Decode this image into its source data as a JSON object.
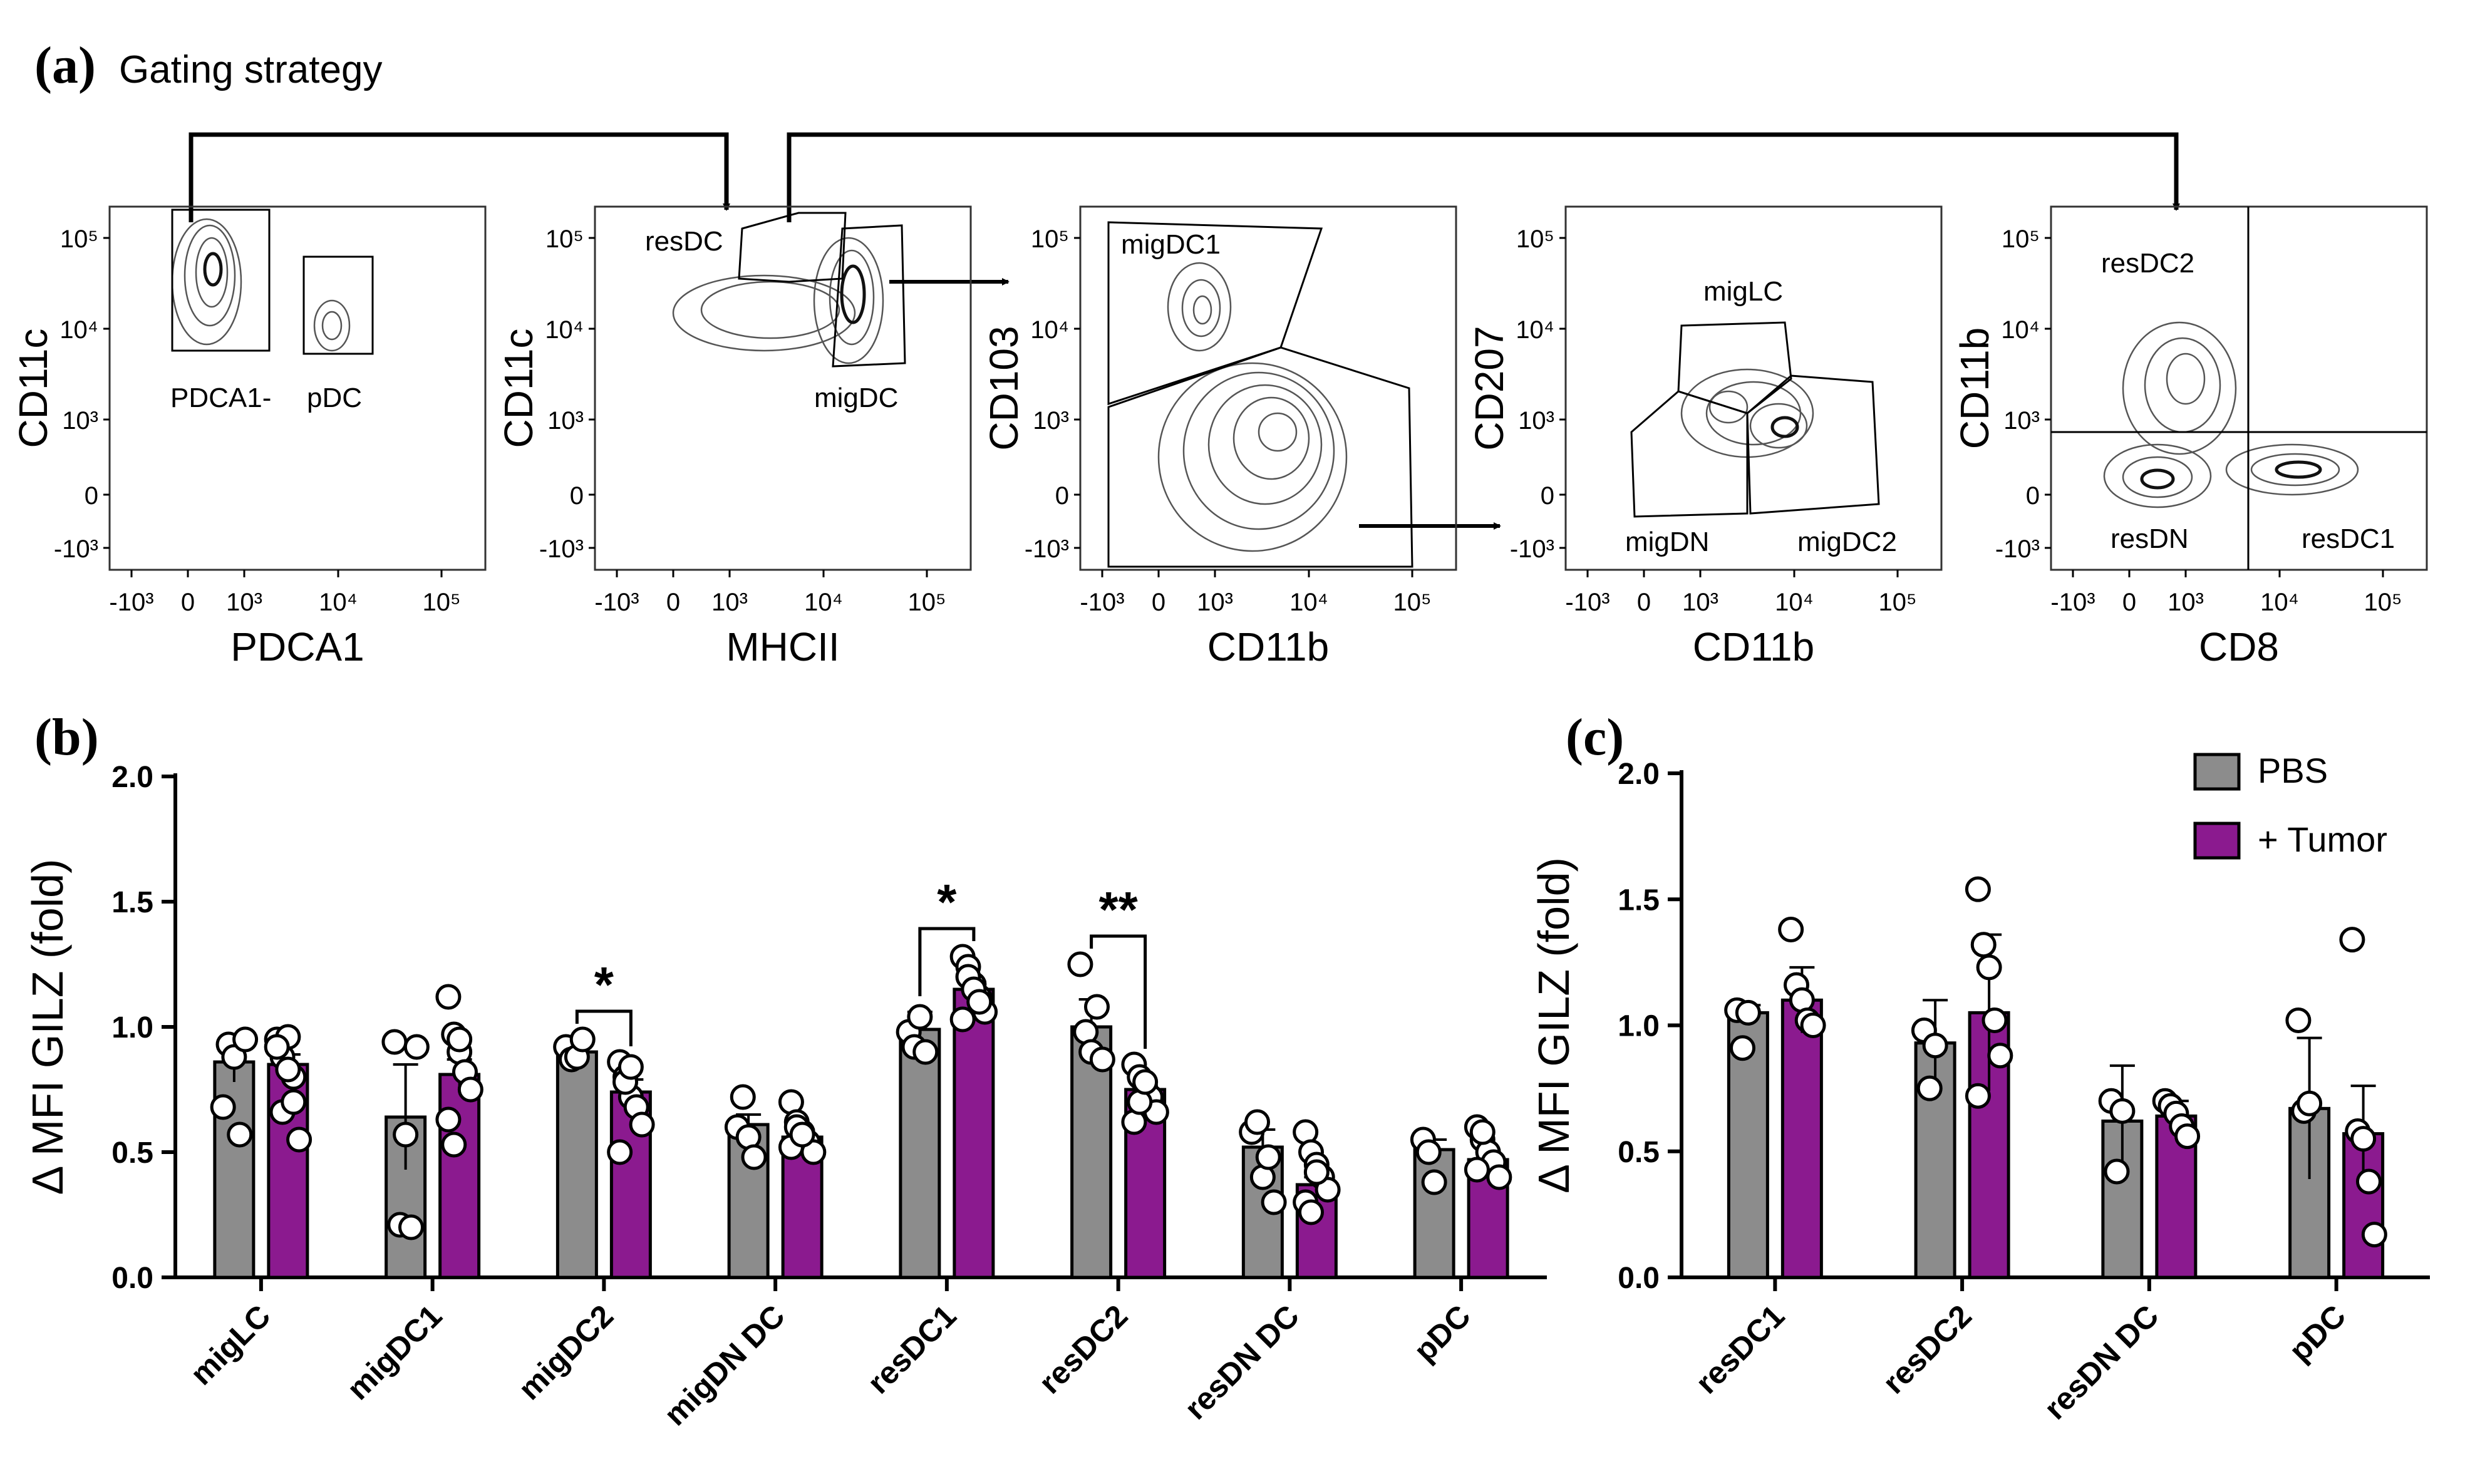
{
  "figure": {
    "panel_a": {
      "letter": "(a)",
      "title": "Gating strategy",
      "plots": [
        {
          "ylabel": "CD11c",
          "xlabel": "PDCA1",
          "gates": [
            "PDCA1-",
            "pDC"
          ]
        },
        {
          "ylabel": "CD11c",
          "xlabel": "MHCII",
          "gates": [
            "resDC",
            "migDC"
          ]
        },
        {
          "ylabel": "CD103",
          "xlabel": "CD11b",
          "gates": [
            "migDC1"
          ]
        },
        {
          "ylabel": "CD207",
          "xlabel": "CD11b",
          "gates": [
            "migLC",
            "migDN",
            "migDC2"
          ]
        },
        {
          "ylabel": "CD11b",
          "xlabel": "CD8",
          "gates": [
            "resDC2",
            "resDN",
            "resDC1"
          ]
        }
      ],
      "y_ticks": [
        "10⁵",
        "10⁴",
        "10³",
        "0",
        "-10³"
      ],
      "x_ticks": [
        "-10³",
        "0",
        "10³",
        "10⁴",
        "10⁵"
      ]
    },
    "panel_b": {
      "letter": "(b)"
    },
    "panel_c": {
      "letter": "(c)"
    }
  },
  "chart_data": [
    {
      "panel": "b",
      "type": "bar",
      "ylabel": "Δ MFI GILZ  (fold)",
      "xlabel": "",
      "ylim": [
        0,
        2.0
      ],
      "yticks": [
        "0.0",
        "0.5",
        "1.0",
        "1.5",
        "2.0"
      ],
      "categories": [
        "migLC",
        "migDC1",
        "migDC2",
        "migDN DC",
        "resDC1",
        "resDC2",
        "resDN DC",
        "pDC"
      ],
      "series": [
        {
          "name": "PBS",
          "color": "#8c8c8c",
          "values": [
            0.86,
            0.64,
            0.9,
            0.61,
            0.99,
            1.0,
            0.52,
            0.51
          ],
          "errors": [
            0.08,
            0.21,
            0.05,
            0.04,
            0.07,
            0.11,
            0.07,
            0.04
          ],
          "points": [
            [
              0.68,
              0.93,
              0.88,
              0.57,
              0.95
            ],
            [
              0.94,
              0.21,
              0.57,
              0.2,
              0.92
            ],
            [
              0.92,
              0.87,
              0.88,
              0.95
            ],
            [
              0.6,
              0.72,
              0.56,
              0.48
            ],
            [
              0.98,
              0.92,
              1.04,
              0.9
            ],
            [
              1.25,
              0.98,
              0.9,
              1.08,
              0.87
            ],
            [
              0.58,
              0.62,
              0.4,
              0.48,
              0.3
            ],
            [
              0.55,
              0.5,
              0.38
            ]
          ]
        },
        {
          "name": "+ Tumor",
          "color": "#8b1a8f",
          "values": [
            0.85,
            0.81,
            0.74,
            0.56,
            1.15,
            0.75,
            0.37,
            0.47
          ],
          "errors": [
            0.04,
            0.06,
            0.05,
            0.03,
            0.03,
            0.03,
            0.03,
            0.03
          ],
          "points": [
            [
              0.95,
              0.88,
              0.96,
              0.8,
              0.55,
              0.92,
              0.66,
              0.83,
              0.7
            ],
            [
              1.12,
              0.97,
              0.9,
              0.82,
              0.75,
              0.63,
              0.53,
              0.95
            ],
            [
              0.86,
              0.8,
              0.72,
              0.68,
              0.61,
              0.5,
              0.78,
              0.84
            ],
            [
              0.7,
              0.62,
              0.58,
              0.54,
              0.5,
              0.52,
              0.6,
              0.57
            ],
            [
              1.28,
              1.24,
              1.17,
              1.12,
              1.06,
              1.03,
              1.2,
              1.15,
              1.1
            ],
            [
              0.85,
              0.8,
              0.76,
              0.72,
              0.66,
              0.62,
              0.7,
              0.78
            ],
            [
              0.58,
              0.5,
              0.45,
              0.4,
              0.35,
              0.3,
              0.26,
              0.42
            ],
            [
              0.6,
              0.55,
              0.5,
              0.46,
              0.4,
              0.43,
              0.58
            ]
          ]
        }
      ],
      "significance": [
        {
          "category": "migDC2",
          "label": "*"
        },
        {
          "category": "resDC1",
          "label": "*"
        },
        {
          "category": "resDC2",
          "label": "**"
        }
      ]
    },
    {
      "panel": "c",
      "type": "bar",
      "ylabel": "Δ MFI GILZ  (fold)",
      "xlabel": "",
      "ylim": [
        0,
        2.0
      ],
      "yticks": [
        "0.0",
        "0.5",
        "1.0",
        "1.5",
        "2.0"
      ],
      "categories": [
        "resDC1",
        "resDC2",
        "resDN DC",
        "pDC"
      ],
      "legend": {
        "placement": "top-right",
        "entries": [
          "PBS",
          "+ Tumor"
        ]
      },
      "series": [
        {
          "name": "PBS",
          "color": "#8c8c8c",
          "values": [
            1.05,
            0.93,
            0.62,
            0.67
          ],
          "errors": [
            0.03,
            0.17,
            0.22,
            0.28
          ],
          "points": [
            [
              1.06,
              0.91,
              1.05
            ],
            [
              0.98,
              0.75,
              0.92
            ],
            [
              0.7,
              0.42,
              0.66
            ],
            [
              1.02,
              0.66,
              0.69
            ]
          ]
        },
        {
          "name": "+ Tumor",
          "color": "#8b1a8f",
          "values": [
            1.1,
            1.05,
            0.64,
            0.57
          ],
          "errors": [
            0.13,
            0.31,
            0.06,
            0.19
          ],
          "points": [
            [
              1.38,
              1.16,
              1.1,
              1.02,
              1.0
            ],
            [
              1.54,
              1.32,
              1.23,
              1.02,
              0.88,
              0.72
            ],
            [
              0.7,
              0.68,
              0.65,
              0.6,
              0.56
            ],
            [
              1.34,
              0.58,
              0.55,
              0.38,
              0.17
            ]
          ]
        }
      ]
    }
  ]
}
